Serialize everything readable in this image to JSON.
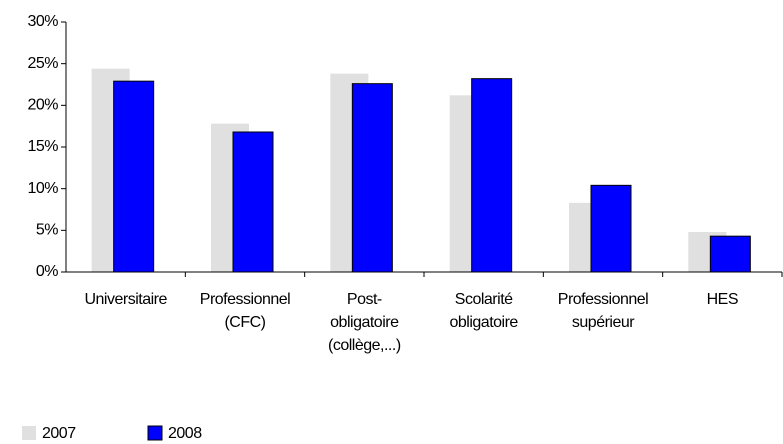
{
  "chart_data": {
    "type": "bar",
    "categories": [
      [
        "Universitaire"
      ],
      [
        "Professionnel",
        "(CFC)"
      ],
      [
        "Post-",
        "obligatoire",
        "(collège,...)"
      ],
      [
        "Scolarité",
        "obligatoire"
      ],
      [
        "Professionnel",
        "supérieur"
      ],
      [
        "HES"
      ]
    ],
    "series": [
      {
        "name": "2007",
        "color": "#e0e0e0",
        "values": [
          24.4,
          17.8,
          23.8,
          21.2,
          8.3,
          4.8
        ]
      },
      {
        "name": "2008",
        "color": "#0000ff",
        "values": [
          22.9,
          16.8,
          22.6,
          23.2,
          10.4,
          4.3
        ]
      }
    ],
    "ylim": [
      0,
      30
    ],
    "yticks": [
      {
        "value": 0,
        "label": "0%"
      },
      {
        "value": 5,
        "label": "5%"
      },
      {
        "value": 10,
        "label": "10%"
      },
      {
        "value": 15,
        "label": "15%"
      },
      {
        "value": 20,
        "label": "20%"
      },
      {
        "value": 25,
        "label": "25%"
      },
      {
        "value": 30,
        "label": "30%"
      }
    ],
    "legend": "bottom-left"
  }
}
